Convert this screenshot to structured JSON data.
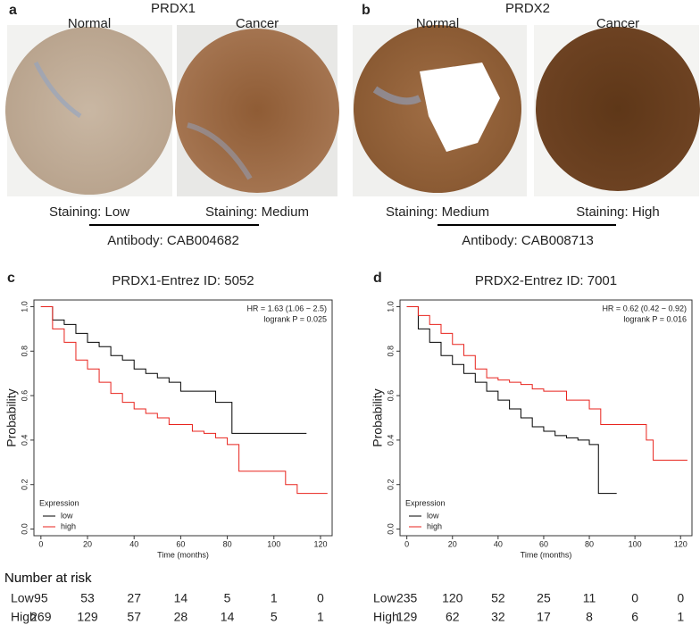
{
  "panels": [
    {
      "letter": "a",
      "title": "PRDX1",
      "normal_label": "Normal",
      "cancer_label": "Cancer",
      "staining_normal": "Staining: Low",
      "staining_cancer": "Staining: Medium",
      "antibody": "Antibody: CAB004682"
    },
    {
      "letter": "b",
      "title": "PRDX2",
      "normal_label": "Normal",
      "cancer_label": "Cancer",
      "staining_normal": "Staining: Medium",
      "staining_cancer": "Staining: High",
      "antibody": "Antibody: CAB008713"
    }
  ],
  "chart_data": [
    {
      "type": "km",
      "panel_letter": "c",
      "title": "PRDX1-Entrez ID: 5052",
      "xlabel": "Time (months)",
      "ylabel": "Probability",
      "annotations": [
        "HR = 1.63 (1.06 − 2.5)",
        "logrank P = 0.025"
      ],
      "legend_title": "Expression",
      "xlim": [
        -3,
        125
      ],
      "ylim": [
        -0.03,
        1.03
      ],
      "xticks": [
        0,
        20,
        40,
        60,
        80,
        100,
        120
      ],
      "yticks": [
        {
          "value": 0,
          "label": "0.0"
        },
        0.2,
        0.4,
        0.6,
        0.8,
        {
          "value": 1,
          "label": "1.0"
        }
      ],
      "series": [
        {
          "name": "low",
          "color": "#000000",
          "x": [
            0,
            5,
            10,
            15,
            20,
            25,
            30,
            35,
            40,
            45,
            50,
            55,
            60,
            65,
            70,
            75,
            80,
            82,
            90,
            100,
            114
          ],
          "values": [
            1,
            0.94,
            0.92,
            0.88,
            0.84,
            0.82,
            0.78,
            0.76,
            0.72,
            0.7,
            0.68,
            0.66,
            0.62,
            0.62,
            0.62,
            0.57,
            0.57,
            0.43,
            0.43,
            0.43,
            0.43
          ]
        },
        {
          "name": "high",
          "color": "#e8231d",
          "x": [
            0,
            5,
            10,
            15,
            20,
            25,
            30,
            35,
            40,
            45,
            50,
            55,
            60,
            65,
            70,
            75,
            80,
            85,
            90,
            100,
            105,
            110,
            123
          ],
          "values": [
            1,
            0.9,
            0.84,
            0.76,
            0.72,
            0.66,
            0.61,
            0.57,
            0.54,
            0.52,
            0.5,
            0.47,
            0.47,
            0.44,
            0.43,
            0.41,
            0.38,
            0.26,
            0.26,
            0.26,
            0.2,
            0.16,
            0.16
          ]
        }
      ],
      "risk_table": {
        "title": "Number at risk",
        "rows": [
          {
            "label": "Low",
            "color": "#000000",
            "values": [
              95,
              53,
              27,
              14,
              5,
              1,
              0
            ]
          },
          {
            "label": "High",
            "color": "#e8231d",
            "values": [
              269,
              129,
              57,
              28,
              14,
              5,
              1
            ]
          }
        ]
      }
    },
    {
      "type": "km",
      "panel_letter": "d",
      "title": "PRDX2-Entrez ID: 7001",
      "xlabel": "Time (months)",
      "ylabel": "Probability",
      "annotations": [
        "HR = 0.62 (0.42 − 0.92)",
        "logrank P = 0.016"
      ],
      "legend_title": "Expression",
      "xlim": [
        -3,
        125
      ],
      "ylim": [
        -0.03,
        1.03
      ],
      "xticks": [
        0,
        20,
        40,
        60,
        80,
        100,
        120
      ],
      "yticks": [
        {
          "value": 0,
          "label": "0.0"
        },
        0.2,
        0.4,
        0.6,
        0.8,
        {
          "value": 1,
          "label": "1.0"
        }
      ],
      "series": [
        {
          "name": "low",
          "color": "#000000",
          "x": [
            0,
            5,
            10,
            15,
            20,
            25,
            30,
            35,
            40,
            45,
            50,
            55,
            60,
            65,
            70,
            75,
            80,
            84,
            86,
            92
          ],
          "values": [
            1,
            0.9,
            0.84,
            0.78,
            0.74,
            0.7,
            0.66,
            0.62,
            0.58,
            0.54,
            0.5,
            0.46,
            0.44,
            0.42,
            0.41,
            0.4,
            0.38,
            0.16,
            0.16,
            0.16
          ]
        },
        {
          "name": "high",
          "color": "#e8231d",
          "x": [
            0,
            5,
            10,
            15,
            20,
            25,
            30,
            35,
            40,
            45,
            50,
            55,
            60,
            70,
            80,
            85,
            90,
            100,
            105,
            108,
            115,
            123
          ],
          "values": [
            1,
            0.96,
            0.92,
            0.88,
            0.83,
            0.78,
            0.72,
            0.68,
            0.67,
            0.66,
            0.65,
            0.63,
            0.62,
            0.58,
            0.54,
            0.47,
            0.47,
            0.47,
            0.4,
            0.31,
            0.31,
            0.31
          ]
        }
      ],
      "risk_table": {
        "title": "Number at risk",
        "rows": [
          {
            "label": "Low",
            "color": "#000000",
            "values": [
              235,
              120,
              52,
              25,
              11,
              0,
              0
            ]
          },
          {
            "label": "High",
            "color": "#e8231d",
            "values": [
              129,
              62,
              32,
              17,
              8,
              6,
              1
            ]
          }
        ]
      }
    }
  ]
}
